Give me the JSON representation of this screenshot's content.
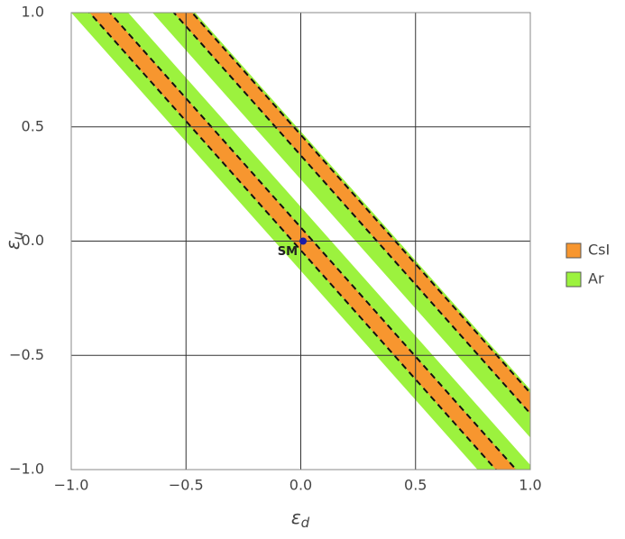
{
  "chart_data": {
    "type": "region",
    "xlabel": {
      "text": "ε",
      "subscript": "d"
    },
    "ylabel": {
      "text": "ε",
      "subscript": "u"
    },
    "xlim": [
      -1,
      1
    ],
    "ylim": [
      -1,
      1
    ],
    "xticks": [
      {
        "value": -1,
        "label": "−1.0"
      },
      {
        "value": -0.5,
        "label": "−0.5"
      },
      {
        "value": 0,
        "label": "0.0"
      },
      {
        "value": 0.5,
        "label": "0.5"
      },
      {
        "value": 1,
        "label": "1.0"
      }
    ],
    "yticks": [
      {
        "value": -1,
        "label": "−1.0"
      },
      {
        "value": -0.5,
        "label": "−0.5"
      },
      {
        "value": 0,
        "label": "0.0"
      },
      {
        "value": 0.5,
        "label": "0.5"
      },
      {
        "value": 1,
        "label": "1.0"
      }
    ],
    "grid": true,
    "series": [
      {
        "name": "Ar",
        "color": "#9cf23e",
        "regions": [
          {
            "x": [
              -1,
              1,
              1,
              -1
            ],
            "y": [
              1.61,
              -0.65,
              -0.86,
              1.4
            ]
          },
          {
            "x": [
              -1,
              1,
              1,
              -1
            ],
            "y": [
              1.28,
              -0.98,
              -1.26,
              1.0
            ]
          }
        ]
      },
      {
        "name": "CsI",
        "color": "#f7962f",
        "regions": [
          {
            "x": [
              -1,
              1,
              1,
              -1
            ],
            "y": [
              1.595,
              -0.665,
              -0.755,
              1.505
            ]
          },
          {
            "x": [
              -1,
              1,
              1,
              -1
            ],
            "y": [
              1.19,
              -1.07,
              -1.17,
              1.09
            ]
          }
        ]
      }
    ],
    "legend_order": [
      "CsI",
      "Ar"
    ],
    "points": [
      {
        "label": "SM",
        "x": 0.01,
        "y": 0,
        "color": "#1c1ca8"
      }
    ]
  }
}
